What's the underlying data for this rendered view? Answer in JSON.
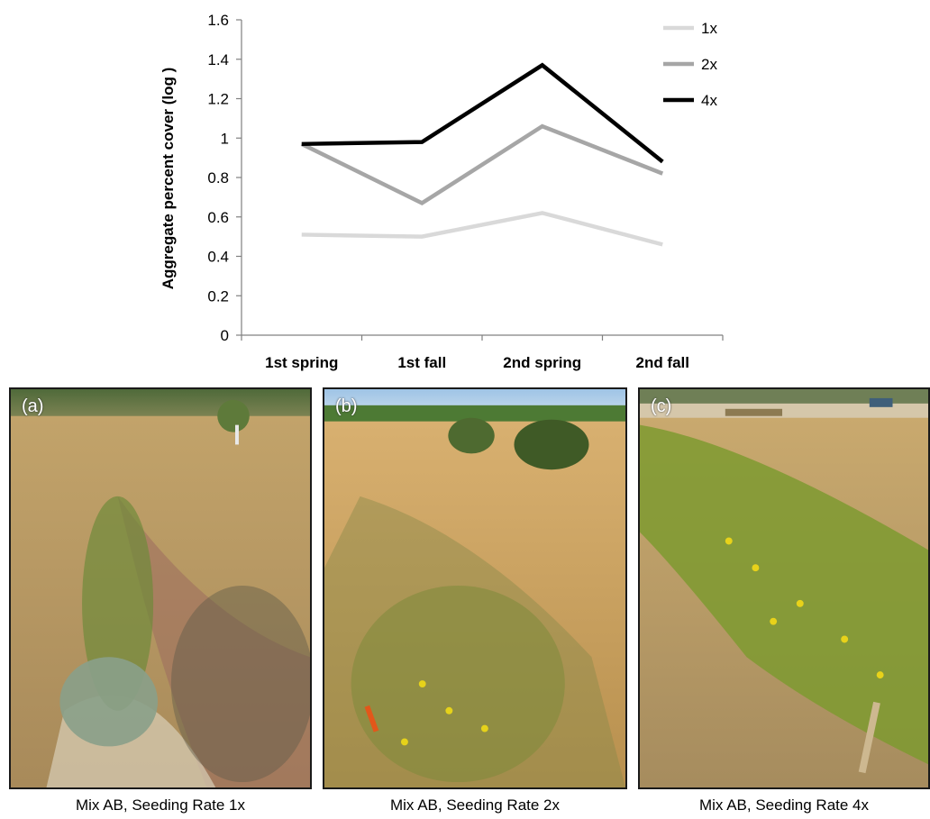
{
  "chart_data": {
    "type": "line",
    "title": "",
    "xlabel": "",
    "ylabel": "Aggregate percent cover (log )",
    "categories": [
      "1st spring",
      "1st fall",
      "2nd spring",
      "2nd fall"
    ],
    "ylim": [
      0,
      1.6
    ],
    "yticks": [
      "0",
      "0.2",
      "0.4",
      "0.6",
      "0.8",
      "1",
      "1.2",
      "1.4",
      "1.6"
    ],
    "grid": false,
    "legend": "top-right",
    "series": [
      {
        "name": "1x",
        "color": "#d9d9d9",
        "values": [
          0.51,
          0.5,
          0.62,
          0.46
        ]
      },
      {
        "name": "2x",
        "color": "#a6a6a6",
        "values": [
          0.97,
          0.67,
          1.06,
          0.82
        ]
      },
      {
        "name": "4x",
        "color": "#000000",
        "values": [
          0.97,
          0.98,
          1.37,
          0.88
        ]
      }
    ]
  },
  "photos": [
    {
      "tag": "(a)",
      "caption": "Mix AB, Seeding Rate 1x"
    },
    {
      "tag": "(b)",
      "caption": "Mix AB, Seeding Rate 2x"
    },
    {
      "tag": "(c)",
      "caption": "Mix AB, Seeding Rate 4x"
    }
  ]
}
